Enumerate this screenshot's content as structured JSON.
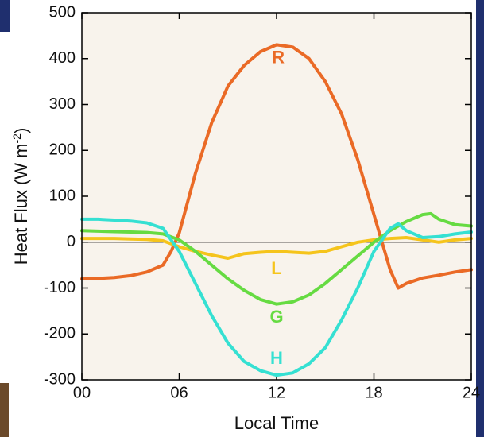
{
  "chart_data": {
    "type": "line",
    "x_label": "Local Time",
    "y_label": "Heat Flux (W m",
    "y_label_sup": "-2",
    "y_label_end": ")",
    "xlim": [
      0,
      24
    ],
    "xticks": [
      {
        "value": 0,
        "label": "00"
      },
      {
        "value": 6,
        "label": "06"
      },
      {
        "value": 12,
        "label": "12"
      },
      {
        "value": 18,
        "label": "18"
      },
      {
        "value": 24,
        "label": "24"
      }
    ],
    "ylim": [
      -300,
      500
    ],
    "yticks": [
      -300,
      -200,
      -100,
      0,
      100,
      200,
      300,
      400,
      500
    ],
    "zero_line": 0,
    "series": [
      {
        "name": "R",
        "color": "#ea6a26",
        "x": [
          0,
          1,
          2,
          3,
          4,
          5,
          5.5,
          6,
          7,
          8,
          9,
          10,
          11,
          12,
          13,
          14,
          15,
          16,
          17,
          18,
          18.5,
          19,
          19.5,
          20,
          21,
          22,
          23,
          24
        ],
        "values": [
          -80,
          -79,
          -77,
          -73,
          -65,
          -50,
          -20,
          20,
          150,
          260,
          340,
          385,
          415,
          430,
          425,
          400,
          350,
          280,
          180,
          60,
          0,
          -60,
          -100,
          -90,
          -78,
          -72,
          -65,
          -60
        ]
      },
      {
        "name": "L",
        "color": "#f5c41c",
        "x": [
          0,
          1,
          2,
          3,
          4,
          5,
          6,
          7,
          8,
          9,
          10,
          11,
          12,
          13,
          14,
          15,
          16,
          17,
          18,
          19,
          20,
          21,
          22,
          23,
          24
        ],
        "values": [
          8,
          8,
          8,
          7,
          6,
          3,
          -10,
          -20,
          -28,
          -35,
          -25,
          -22,
          -20,
          -22,
          -24,
          -20,
          -10,
          0,
          5,
          8,
          10,
          5,
          0,
          5,
          8
        ]
      },
      {
        "name": "G",
        "color": "#66db42",
        "x": [
          0,
          1,
          2,
          3,
          4,
          5,
          6,
          7,
          8,
          9,
          10,
          11,
          12,
          13,
          14,
          15,
          16,
          17,
          18,
          19,
          20,
          21,
          21.5,
          22,
          23,
          24
        ],
        "values": [
          25,
          24,
          23,
          22,
          21,
          18,
          5,
          -20,
          -50,
          -80,
          -105,
          -125,
          -135,
          -130,
          -115,
          -90,
          -60,
          -30,
          0,
          25,
          45,
          60,
          62,
          50,
          38,
          35
        ]
      },
      {
        "name": "H",
        "color": "#35e0d2",
        "x": [
          0,
          1,
          2,
          3,
          4,
          5,
          6,
          7,
          8,
          9,
          10,
          11,
          12,
          13,
          14,
          15,
          16,
          17,
          18,
          19,
          19.5,
          20,
          21,
          22,
          23,
          24
        ],
        "values": [
          50,
          50,
          48,
          46,
          42,
          30,
          -20,
          -90,
          -160,
          -220,
          -260,
          -280,
          -290,
          -285,
          -265,
          -230,
          -170,
          -100,
          -20,
          30,
          40,
          25,
          10,
          12,
          18,
          22
        ]
      }
    ]
  }
}
